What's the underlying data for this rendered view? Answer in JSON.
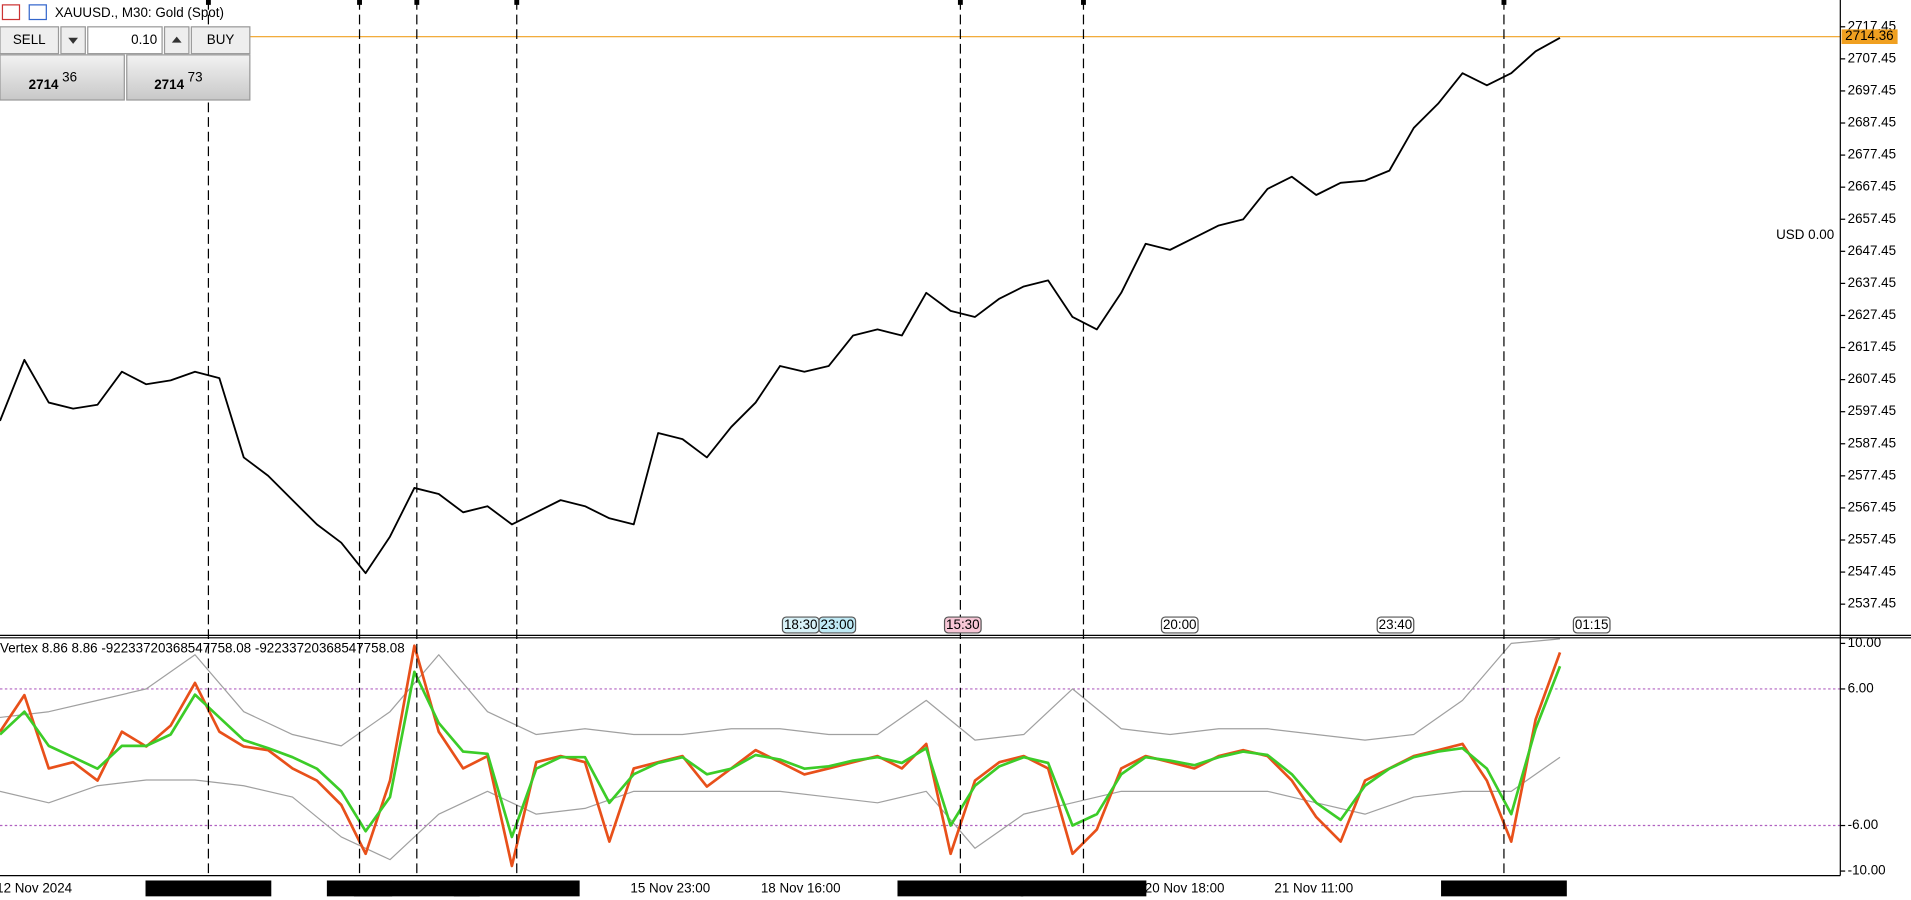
{
  "header": {
    "title": "XAUUSD., M30:  Gold (Spot)"
  },
  "trade_panel": {
    "sell": "SELL",
    "lot": "0.10",
    "buy": "BUY",
    "bid_big": 2714,
    "bid_small": 36,
    "ask_big": 2714,
    "ask_small": 73
  },
  "account": {
    "text": "USD 0.00"
  },
  "time_labels": [
    "12 Nov 2024",
    "15 Nov 23:00",
    "18 Nov 16:00",
    "20 Nov 18:00",
    "21 Nov 11:00"
  ],
  "vlines": [
    "2024.11.13 15:30",
    "2024.11.",
    "2024.11.14 18:30",
    "2024.11.15 08:00",
    "2024.11.19 17:30",
    "2024.11.20 10:00",
    "2024.11.22 16:30"
  ],
  "events": [
    {
      "text": "18:30",
      "color": "#d8f2f8"
    },
    {
      "text": "23:00",
      "color": "#bfeaf5"
    },
    {
      "text": "15:30",
      "color": "#f7c6d6"
    },
    {
      "text": "20:00",
      "color": "#ffffff"
    },
    {
      "text": "23:40",
      "color": "#ffffff"
    },
    {
      "text": "01:15",
      "color": "#ffffff"
    }
  ],
  "chart_data": [
    {
      "type": "line",
      "ylim": [
        2528.1,
        2725.8
      ],
      "yticks": [
        2717.45,
        2707.45,
        2697.45,
        2687.45,
        2677.45,
        2667.45,
        2657.45,
        2647.45,
        2637.45,
        2627.45,
        2617.45,
        2607.45,
        2597.45,
        2587.45,
        2577.45,
        2567.45,
        2557.45,
        2547.45,
        2537.45
      ],
      "last_price": 2714.36,
      "last_price_color": "#f0a020",
      "series": [
        {
          "color": "#000000",
          "values": [
            2594.6,
            2613.6,
            2600.3,
            2598.4,
            2599.6,
            2609.9,
            2606.0,
            2607.2,
            2609.9,
            2607.9,
            2583.2,
            2577.5,
            2569.9,
            2562.3,
            2556.6,
            2547.1,
            2558.5,
            2573.7,
            2571.8,
            2566.1,
            2568.0,
            2562.3,
            2566.1,
            2569.9,
            2568.0,
            2564.2,
            2562.3,
            2590.8,
            2588.9,
            2583.2,
            2592.7,
            2600.3,
            2611.7,
            2609.9,
            2611.7,
            2621.2,
            2623.1,
            2621.2,
            2634.5,
            2628.9,
            2627.0,
            2632.7,
            2636.5,
            2638.4,
            2627.0,
            2623.1,
            2634.5,
            2649.8,
            2647.9,
            2651.7,
            2655.5,
            2657.4,
            2666.9,
            2670.7,
            2665.0,
            2668.8,
            2669.5,
            2672.6,
            2685.9,
            2693.5,
            2703.0,
            2699.2,
            2703.0,
            2709.8,
            2714.0
          ]
        }
      ]
    },
    {
      "type": "line",
      "title": "Vertex 8.86 8.86 -92233720368547758.08 -92233720368547758.08",
      "ylim": [
        -10.4,
        10.6
      ],
      "yticks": [
        {
          "value": 10,
          "label": "10.00"
        },
        {
          "value": 6,
          "label": "6.00"
        },
        {
          "value": -6,
          "label": "-6.00"
        },
        {
          "value": -10,
          "label": "-10.00"
        }
      ],
      "levels": [
        6,
        -6
      ],
      "series": [
        {
          "color": "#a0a0a0",
          "values": [
            3.5,
            4.0,
            5.0,
            6.0,
            9.0,
            4.0,
            2.0,
            1.0,
            4.0,
            9.0,
            4.0,
            2.0,
            2.5,
            2.0,
            2.0,
            2.5,
            2.5,
            2.0,
            2.0,
            5.0,
            1.5,
            2.0,
            6.0,
            2.5,
            2.0,
            2.5,
            2.5,
            2.0,
            1.5,
            2.0,
            5.0,
            10.0,
            10.4
          ]
        },
        {
          "color": "#a0a0a0",
          "values": [
            -3.0,
            -4.0,
            -2.5,
            -2.0,
            -2.0,
            -2.5,
            -3.5,
            -7.0,
            -9.0,
            -5.0,
            -3.0,
            -5.0,
            -4.5,
            -3.0,
            -3.0,
            -3.0,
            -3.0,
            -3.5,
            -4.0,
            -3.0,
            -8.0,
            -5.0,
            -4.0,
            -3.0,
            -3.0,
            -3.0,
            -3.0,
            -4.0,
            -5.0,
            -3.5,
            -3.0,
            -3.0,
            0.0
          ]
        },
        {
          "color": "#e8501a",
          "values": [
            2.24,
            5.46,
            -0.98,
            -0.44,
            -2.05,
            2.24,
            0.95,
            2.78,
            6.53,
            2.24,
            0.95,
            0.63,
            -0.98,
            -2.05,
            -4.19,
            -8.48,
            -2.05,
            9.8,
            2.24,
            -0.98,
            0.1,
            -9.55,
            -0.44,
            0.1,
            -0.44,
            -7.41,
            -0.98,
            -0.44,
            0.1,
            -2.58,
            -0.98,
            0.63,
            -0.44,
            -1.51,
            -0.98,
            -0.44,
            0.1,
            -0.98,
            1.17,
            -8.48,
            -2.05,
            -0.44,
            0.1,
            -0.98,
            -8.48,
            -6.34,
            -0.98,
            0.1,
            -0.44,
            -0.98,
            0.1,
            0.63,
            0.1,
            -2.05,
            -5.26,
            -7.41,
            -2.05,
            -0.98,
            0.1,
            0.63,
            1.17,
            -2.05,
            -7.41,
            3.31,
            9.21
          ]
        },
        {
          "color": "#3ccc28",
          "values": [
            2.0,
            4.0,
            1.0,
            0.0,
            -1.0,
            1.0,
            1.0,
            2.0,
            5.5,
            3.5,
            1.5,
            0.8,
            0.0,
            -1.0,
            -3.0,
            -6.5,
            -3.5,
            7.5,
            3.0,
            0.5,
            0.3,
            -7.0,
            -1.0,
            0.0,
            0.0,
            -4.0,
            -1.5,
            -0.5,
            0.0,
            -1.5,
            -1.0,
            0.2,
            -0.2,
            -1.0,
            -0.8,
            -0.3,
            0.0,
            -0.5,
            0.8,
            -6.0,
            -2.5,
            -0.8,
            0.0,
            -0.5,
            -6.0,
            -5.0,
            -1.5,
            0.0,
            -0.3,
            -0.7,
            0.0,
            0.5,
            0.2,
            -1.5,
            -4.0,
            -5.5,
            -2.5,
            -1.0,
            0.0,
            0.5,
            0.8,
            -1.0,
            -5.0,
            2.5,
            8.0
          ]
        }
      ]
    }
  ]
}
